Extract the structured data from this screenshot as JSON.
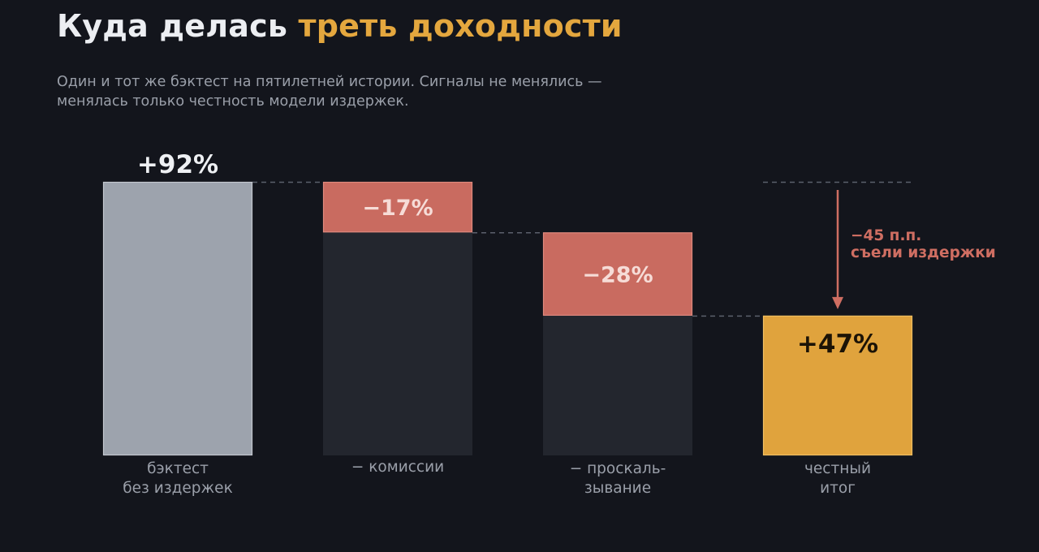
{
  "header": {
    "title_main": "Куда делась",
    "title_accent": "треть доходности",
    "subtitle_line1": "Один и тот же бэктест на пятилетней истории. Сигналы не менялись —",
    "subtitle_line2": "менялась только честность модели издержек."
  },
  "colors": {
    "background": "#13151c",
    "gross_bar": "#9da3ad",
    "cost_bar": "#c96b60",
    "net_bar": "#e0a33d",
    "ghost_bar": "#23262e",
    "connector": "#5b606b",
    "annotation": "#cf6e62"
  },
  "chart_data": {
    "type": "bar",
    "subtype": "waterfall",
    "unit": "%",
    "ylim": [
      0,
      92
    ],
    "grid": false,
    "steps": [
      {
        "kind": "total",
        "value": 92,
        "label": "+92%",
        "category": [
          "бэктест",
          "без издержек"
        ]
      },
      {
        "kind": "delta",
        "value": -17,
        "label": "−17%",
        "category": [
          "− комиссии"
        ]
      },
      {
        "kind": "delta",
        "value": -28,
        "label": "−28%",
        "category": [
          "− проскаль-",
          "зывание"
        ]
      },
      {
        "kind": "total",
        "value": 47,
        "label": "+47%",
        "category": [
          "честный",
          "итог"
        ]
      }
    ],
    "annotation": {
      "from": 92,
      "to": 47,
      "lines": [
        "−45 п.п.",
        "съели издержки"
      ]
    }
  }
}
